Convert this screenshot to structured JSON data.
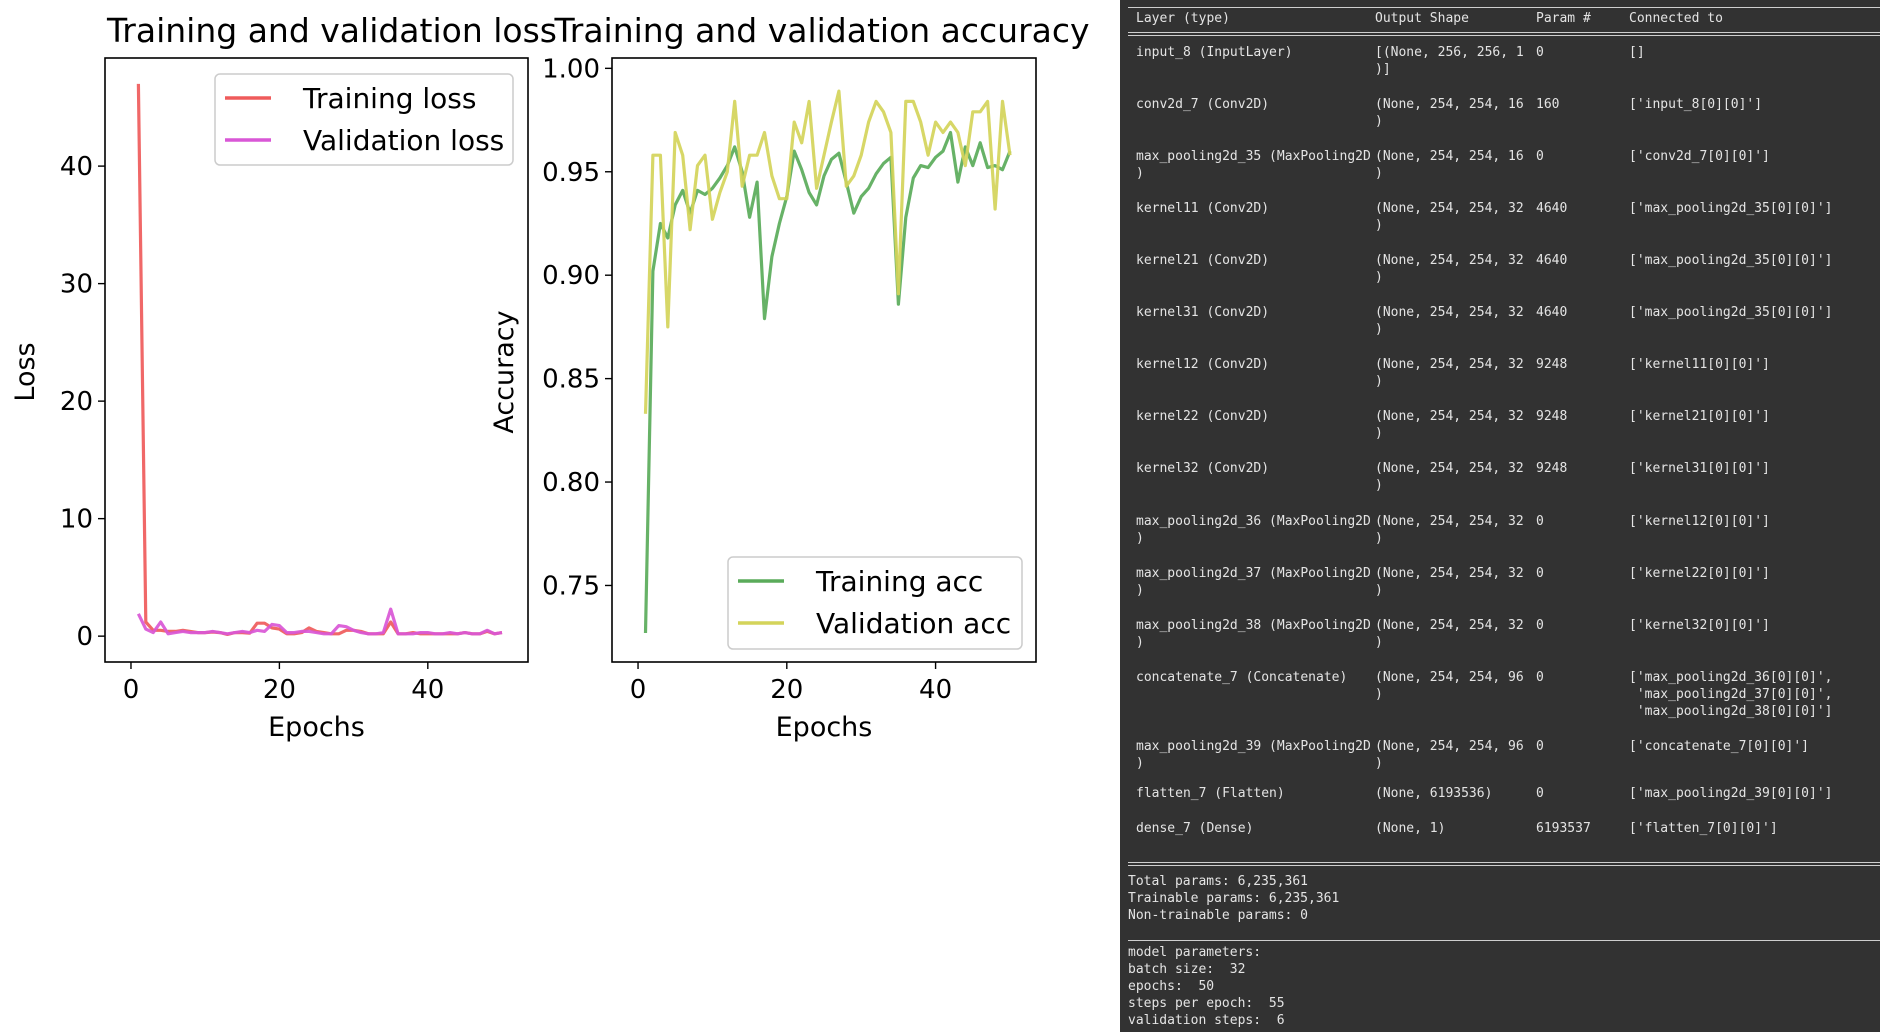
{
  "chart_data": [
    {
      "type": "line",
      "title": "Training and validation loss",
      "xlabel": "Epochs",
      "ylabel": "Loss",
      "xlim": [
        -3.5,
        53.5
      ],
      "ylim": [
        -2.2,
        49.2
      ],
      "xticks": [
        0,
        20,
        40
      ],
      "yticks": [
        0,
        10,
        20,
        30,
        40
      ],
      "legend": "upper-right",
      "grid": false,
      "x": [
        1,
        2,
        3,
        4,
        5,
        6,
        7,
        8,
        9,
        10,
        11,
        12,
        13,
        14,
        15,
        16,
        17,
        18,
        19,
        20,
        21,
        22,
        23,
        24,
        25,
        26,
        27,
        28,
        29,
        30,
        31,
        32,
        33,
        34,
        35,
        36,
        37,
        38,
        39,
        40,
        41,
        42,
        43,
        44,
        45,
        46,
        47,
        48,
        49,
        50
      ],
      "series": [
        {
          "name": "Training loss",
          "color": "#ef5b5b",
          "values": [
            47.0,
            1.2,
            0.5,
            0.5,
            0.4,
            0.4,
            0.5,
            0.4,
            0.3,
            0.3,
            0.35,
            0.3,
            0.15,
            0.3,
            0.3,
            0.25,
            1.1,
            1.1,
            0.7,
            0.6,
            0.2,
            0.2,
            0.3,
            0.7,
            0.4,
            0.3,
            0.2,
            0.2,
            0.5,
            0.5,
            0.4,
            0.2,
            0.2,
            0.2,
            1.2,
            0.2,
            0.2,
            0.3,
            0.2,
            0.2,
            0.2,
            0.2,
            0.2,
            0.2,
            0.3,
            0.2,
            0.2,
            0.4,
            0.2,
            0.3
          ]
        },
        {
          "name": "Validation loss",
          "color": "#d957d6",
          "values": [
            1.9,
            0.6,
            0.3,
            1.2,
            0.2,
            0.3,
            0.4,
            0.3,
            0.3,
            0.3,
            0.4,
            0.3,
            0.2,
            0.3,
            0.4,
            0.3,
            0.5,
            0.4,
            1.0,
            0.9,
            0.3,
            0.3,
            0.4,
            0.4,
            0.3,
            0.2,
            0.2,
            0.9,
            0.8,
            0.5,
            0.3,
            0.2,
            0.2,
            0.3,
            2.3,
            0.2,
            0.2,
            0.2,
            0.3,
            0.3,
            0.2,
            0.2,
            0.3,
            0.2,
            0.3,
            0.2,
            0.2,
            0.5,
            0.2,
            0.3
          ]
        }
      ]
    },
    {
      "type": "line",
      "title": "Training and validation accuracy",
      "xlabel": "Epochs",
      "ylabel": "Accuracy",
      "xlim": [
        -3.5,
        53.5
      ],
      "ylim": [
        0.713,
        1.005
      ],
      "xticks": [
        0,
        20,
        40
      ],
      "yticks": [
        0.75,
        0.8,
        0.85,
        0.9,
        0.95,
        1.0
      ],
      "legend": "lower-right",
      "grid": false,
      "x": [
        1,
        2,
        3,
        4,
        5,
        6,
        7,
        8,
        9,
        10,
        11,
        12,
        13,
        14,
        15,
        16,
        17,
        18,
        19,
        20,
        21,
        22,
        23,
        24,
        25,
        26,
        27,
        28,
        29,
        30,
        31,
        32,
        33,
        34,
        35,
        36,
        37,
        38,
        39,
        40,
        41,
        42,
        43,
        44,
        45,
        46,
        47,
        48,
        49,
        50
      ],
      "series": [
        {
          "name": "Training acc",
          "color": "#5aab5a",
          "values": [
            0.727,
            0.902,
            0.925,
            0.918,
            0.934,
            0.941,
            0.93,
            0.941,
            0.939,
            0.942,
            0.947,
            0.953,
            0.962,
            0.95,
            0.928,
            0.945,
            0.879,
            0.909,
            0.925,
            0.938,
            0.96,
            0.951,
            0.94,
            0.934,
            0.948,
            0.956,
            0.959,
            0.945,
            0.93,
            0.938,
            0.942,
            0.949,
            0.954,
            0.957,
            0.886,
            0.928,
            0.947,
            0.953,
            0.952,
            0.957,
            0.96,
            0.969,
            0.945,
            0.962,
            0.953,
            0.964,
            0.952,
            0.953,
            0.951,
            0.96
          ]
        },
        {
          "name": "Validation acc",
          "color": "#d4d45a",
          "values": [
            0.833,
            0.958,
            0.958,
            0.875,
            0.969,
            0.958,
            0.922,
            0.953,
            0.958,
            0.927,
            0.94,
            0.95,
            0.984,
            0.943,
            0.958,
            0.958,
            0.969,
            0.948,
            0.937,
            0.937,
            0.974,
            0.964,
            0.984,
            0.942,
            0.958,
            0.974,
            0.989,
            0.943,
            0.948,
            0.958,
            0.974,
            0.984,
            0.979,
            0.969,
            0.891,
            0.984,
            0.984,
            0.974,
            0.958,
            0.974,
            0.969,
            0.974,
            0.969,
            0.953,
            0.979,
            0.979,
            0.984,
            0.932,
            0.984,
            0.958
          ]
        }
      ]
    }
  ],
  "summary": {
    "headers": [
      "Layer (type)",
      "Output Shape",
      "Param #",
      "Connected to"
    ],
    "rows": [
      {
        "layer": [
          "input_8 (InputLayer)"
        ],
        "shape": [
          "[(None, 256, 256, 1",
          ")]"
        ],
        "params": "0",
        "connected": [
          "[]"
        ]
      },
      {
        "layer": [
          "conv2d_7 (Conv2D)"
        ],
        "shape": [
          "(None, 254, 254, 16",
          ")"
        ],
        "params": "160",
        "connected": [
          "['input_8[0][0]']"
        ]
      },
      {
        "layer": [
          "max_pooling2d_35 (MaxPooling2D",
          ")"
        ],
        "shape": [
          "(None, 254, 254, 16",
          ")"
        ],
        "params": "0",
        "connected": [
          "['conv2d_7[0][0]']"
        ]
      },
      {
        "layer": [
          "kernel11 (Conv2D)"
        ],
        "shape": [
          "(None, 254, 254, 32",
          ")"
        ],
        "params": "4640",
        "connected": [
          "['max_pooling2d_35[0][0]']"
        ]
      },
      {
        "layer": [
          "kernel21 (Conv2D)"
        ],
        "shape": [
          "(None, 254, 254, 32",
          ")"
        ],
        "params": "4640",
        "connected": [
          "['max_pooling2d_35[0][0]']"
        ]
      },
      {
        "layer": [
          "kernel31 (Conv2D)"
        ],
        "shape": [
          "(None, 254, 254, 32",
          ")"
        ],
        "params": "4640",
        "connected": [
          "['max_pooling2d_35[0][0]']"
        ]
      },
      {
        "layer": [
          "kernel12 (Conv2D)"
        ],
        "shape": [
          "(None, 254, 254, 32",
          ")"
        ],
        "params": "9248",
        "connected": [
          "['kernel11[0][0]']"
        ]
      },
      {
        "layer": [
          "kernel22 (Conv2D)"
        ],
        "shape": [
          "(None, 254, 254, 32",
          ")"
        ],
        "params": "9248",
        "connected": [
          "['kernel21[0][0]']"
        ]
      },
      {
        "layer": [
          "kernel32 (Conv2D)"
        ],
        "shape": [
          "(None, 254, 254, 32",
          ")"
        ],
        "params": "9248",
        "connected": [
          "['kernel31[0][0]']"
        ]
      },
      {
        "layer": [
          "max_pooling2d_36 (MaxPooling2D",
          ")"
        ],
        "shape": [
          "(None, 254, 254, 32",
          ")"
        ],
        "params": "0",
        "connected": [
          "['kernel12[0][0]']"
        ]
      },
      {
        "layer": [
          "max_pooling2d_37 (MaxPooling2D",
          ")"
        ],
        "shape": [
          "(None, 254, 254, 32",
          ")"
        ],
        "params": "0",
        "connected": [
          "['kernel22[0][0]']"
        ]
      },
      {
        "layer": [
          "max_pooling2d_38 (MaxPooling2D",
          ")"
        ],
        "shape": [
          "(None, 254, 254, 32",
          ")"
        ],
        "params": "0",
        "connected": [
          "['kernel32[0][0]']"
        ]
      },
      {
        "layer": [
          "concatenate_7 (Concatenate)"
        ],
        "shape": [
          "(None, 254, 254, 96",
          ")"
        ],
        "params": "0",
        "connected": [
          "['max_pooling2d_36[0][0]',",
          " 'max_pooling2d_37[0][0]',",
          " 'max_pooling2d_38[0][0]']"
        ]
      },
      {
        "layer": [
          "max_pooling2d_39 (MaxPooling2D",
          ")"
        ],
        "shape": [
          "(None, 254, 254, 96",
          ")"
        ],
        "params": "0",
        "connected": [
          "['concatenate_7[0][0]']"
        ]
      },
      {
        "layer": [
          "flatten_7 (Flatten)"
        ],
        "shape": [
          "(None, 6193536)"
        ],
        "params": "0",
        "connected": [
          "['max_pooling2d_39[0][0]']"
        ]
      },
      {
        "layer": [
          "dense_7 (Dense)"
        ],
        "shape": [
          "(None, 1)"
        ],
        "params": "6193537",
        "connected": [
          "['flatten_7[0][0]']"
        ]
      }
    ],
    "totals": [
      "Total params: 6,235,361",
      "Trainable params: 6,235,361",
      "Non-trainable params: 0"
    ],
    "model_parameters": [
      "model parameters:",
      "batch size:  32",
      "epochs:  50",
      "steps per epoch:  55",
      "validation steps:  6"
    ]
  }
}
